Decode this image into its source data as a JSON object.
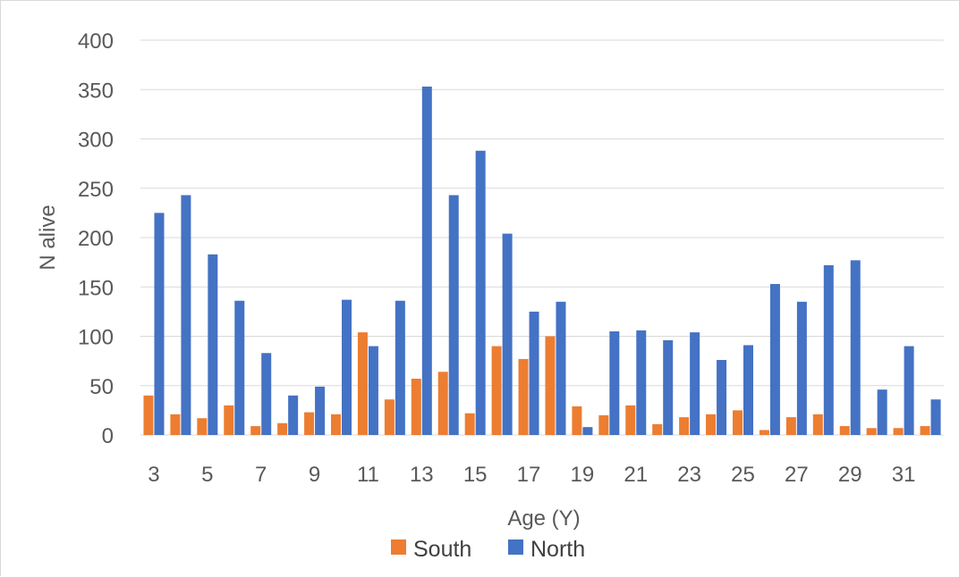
{
  "chart_data": {
    "type": "bar",
    "title": "",
    "xlabel": "Age (Y)",
    "ylabel": "N alive",
    "ylim": [
      0,
      400
    ],
    "yticks": [
      0,
      50,
      100,
      150,
      200,
      250,
      300,
      350,
      400
    ],
    "grid": true,
    "legend_position": "bottom",
    "categories": [
      3,
      4,
      5,
      6,
      7,
      8,
      9,
      10,
      11,
      12,
      13,
      14,
      15,
      16,
      17,
      18,
      19,
      20,
      21,
      22,
      23,
      24,
      25,
      26,
      27,
      28,
      29,
      30,
      31,
      32
    ],
    "x_tick_labels": [
      "3",
      "5",
      "7",
      "9",
      "11",
      "13",
      "15",
      "17",
      "19",
      "21",
      "23",
      "25",
      "27",
      "29",
      "31"
    ],
    "series": [
      {
        "name": "South",
        "color": "#ED7D31",
        "values": [
          40,
          21,
          17,
          30,
          9,
          12,
          23,
          21,
          104,
          36,
          57,
          64,
          22,
          90,
          77,
          100,
          29,
          20,
          30,
          11,
          18,
          21,
          25,
          5,
          18,
          21,
          9,
          7,
          7,
          9
        ]
      },
      {
        "name": "North",
        "color": "#4472C4",
        "values": [
          225,
          243,
          183,
          136,
          83,
          40,
          49,
          137,
          90,
          136,
          353,
          243,
          288,
          204,
          125,
          135,
          8,
          105,
          106,
          96,
          104,
          76,
          91,
          153,
          135,
          172,
          177,
          46,
          90,
          36
        ]
      }
    ]
  }
}
